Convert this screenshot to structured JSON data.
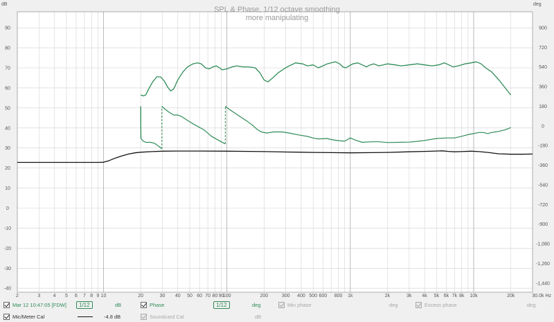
{
  "chart_data": {
    "type": "line",
    "title": "SPL & Phase, 1/12 octave smoothing",
    "subtitle": "more manipulating",
    "y_left_unit": "dB",
    "y_right_unit": "deg",
    "x_unit": "Hz",
    "x_scale": "log",
    "xlim": [
      2,
      30000
    ],
    "ylim_left": [
      -42,
      98
    ],
    "ylim_right": [
      -1524,
      1046
    ],
    "grid": true,
    "x_ticks": [
      {
        "v": 2,
        "label": "2"
      },
      {
        "v": 3,
        "label": "3"
      },
      {
        "v": 4,
        "label": "4"
      },
      {
        "v": 5,
        "label": "5"
      },
      {
        "v": 6,
        "label": "6"
      },
      {
        "v": 7,
        "label": "7"
      },
      {
        "v": 8,
        "label": "8"
      },
      {
        "v": 9,
        "label": "9"
      },
      {
        "v": 10,
        "label": "10"
      },
      {
        "v": 20,
        "label": "20"
      },
      {
        "v": 30,
        "label": "30"
      },
      {
        "v": 40,
        "label": "40"
      },
      {
        "v": 50,
        "label": "50"
      },
      {
        "v": 60,
        "label": "60"
      },
      {
        "v": 70,
        "label": "70"
      },
      {
        "v": 80,
        "label": "80"
      },
      {
        "v": 90,
        "label": "90"
      },
      {
        "v": 100,
        "label": "100"
      },
      {
        "v": 200,
        "label": "200"
      },
      {
        "v": 300,
        "label": "300"
      },
      {
        "v": 400,
        "label": "400"
      },
      {
        "v": 500,
        "label": "500"
      },
      {
        "v": 600,
        "label": "600"
      },
      {
        "v": 800,
        "label": "800"
      },
      {
        "v": 1000,
        "label": "1k"
      },
      {
        "v": 2000,
        "label": "2k"
      },
      {
        "v": 3000,
        "label": "3k"
      },
      {
        "v": 4000,
        "label": "4k"
      },
      {
        "v": 5000,
        "label": "5k"
      },
      {
        "v": 6000,
        "label": "6k"
      },
      {
        "v": 7000,
        "label": "7k"
      },
      {
        "v": 8000,
        "label": "8k"
      },
      {
        "v": 10000,
        "label": "10k"
      },
      {
        "v": 20000,
        "label": "20k"
      },
      {
        "v": 30000,
        "label": "30.0k Hz"
      }
    ],
    "x_minor": [
      700,
      900,
      9000
    ],
    "y_left_ticks": [
      {
        "v": 90,
        "label": "90"
      },
      {
        "v": 80,
        "label": "80"
      },
      {
        "v": 70,
        "label": "70"
      },
      {
        "v": 60,
        "label": "60"
      },
      {
        "v": 50,
        "label": "50"
      },
      {
        "v": 40,
        "label": "40"
      },
      {
        "v": 30,
        "label": "30"
      },
      {
        "v": 20,
        "label": "20"
      },
      {
        "v": 10,
        "label": "10"
      },
      {
        "v": 0,
        "label": "0"
      },
      {
        "v": -10,
        "label": "-10"
      },
      {
        "v": -20,
        "label": "-20"
      },
      {
        "v": -30,
        "label": "-30"
      },
      {
        "v": -40,
        "label": "-40"
      }
    ],
    "y_right_ticks": [
      {
        "v": 900,
        "label": "900"
      },
      {
        "v": 720,
        "label": "720"
      },
      {
        "v": 540,
        "label": "540"
      },
      {
        "v": 360,
        "label": "360"
      },
      {
        "v": 180,
        "label": "180"
      },
      {
        "v": 0,
        "label": "0"
      },
      {
        "v": -180,
        "label": "-180"
      },
      {
        "v": -360,
        "label": "-360"
      },
      {
        "v": -540,
        "label": "-540"
      },
      {
        "v": -720,
        "label": "-720"
      },
      {
        "v": -900,
        "label": "-900"
      },
      {
        "v": -1080,
        "label": "-1,080"
      },
      {
        "v": -1260,
        "label": "-1,260"
      },
      {
        "v": -1440,
        "label": "-1,440"
      }
    ],
    "series": [
      {
        "name": "Mar 12 10:47:05 [FDW]",
        "axis": "left",
        "color": "#2e8b57",
        "points": [
          [
            20,
            56.5
          ],
          [
            21,
            56
          ],
          [
            22,
            56.5
          ],
          [
            23,
            59
          ],
          [
            25,
            63
          ],
          [
            27,
            65.5
          ],
          [
            29,
            65.5
          ],
          [
            31,
            63.5
          ],
          [
            33,
            60.5
          ],
          [
            35,
            58.5
          ],
          [
            37,
            59.5
          ],
          [
            40,
            64
          ],
          [
            44,
            68
          ],
          [
            48,
            70.5
          ],
          [
            53,
            72
          ],
          [
            58,
            72.5
          ],
          [
            62,
            72
          ],
          [
            67,
            70
          ],
          [
            72,
            69.5
          ],
          [
            77,
            70.5
          ],
          [
            82,
            71
          ],
          [
            87,
            70
          ],
          [
            92,
            69
          ],
          [
            100,
            69.5
          ],
          [
            110,
            70.5
          ],
          [
            120,
            71
          ],
          [
            135,
            70.5
          ],
          [
            150,
            70.5
          ],
          [
            170,
            70
          ],
          [
            185,
            67.5
          ],
          [
            200,
            64
          ],
          [
            215,
            63
          ],
          [
            235,
            65
          ],
          [
            260,
            67.5
          ],
          [
            290,
            69.5
          ],
          [
            320,
            71
          ],
          [
            360,
            72.5
          ],
          [
            410,
            72
          ],
          [
            450,
            71
          ],
          [
            500,
            71.5
          ],
          [
            550,
            70
          ],
          [
            600,
            71
          ],
          [
            650,
            72
          ],
          [
            700,
            72.5
          ],
          [
            760,
            73
          ],
          [
            820,
            72
          ],
          [
            870,
            70.5
          ],
          [
            920,
            70
          ],
          [
            980,
            71
          ],
          [
            1050,
            72
          ],
          [
            1150,
            72.5
          ],
          [
            1250,
            71.5
          ],
          [
            1350,
            70.5
          ],
          [
            1450,
            71.5
          ],
          [
            1550,
            72
          ],
          [
            1700,
            71
          ],
          [
            1850,
            71.5
          ],
          [
            2000,
            72
          ],
          [
            2300,
            71.5
          ],
          [
            2600,
            71
          ],
          [
            3000,
            71.5
          ],
          [
            3500,
            72
          ],
          [
            4000,
            71.5
          ],
          [
            4600,
            71
          ],
          [
            5200,
            71.5
          ],
          [
            5800,
            72.5
          ],
          [
            6300,
            71.5
          ],
          [
            6800,
            70.5
          ],
          [
            7500,
            71
          ],
          [
            8500,
            72
          ],
          [
            9500,
            72.5
          ],
          [
            10500,
            73
          ],
          [
            11500,
            72
          ],
          [
            12500,
            70
          ],
          [
            14000,
            68
          ],
          [
            16000,
            64
          ],
          [
            18000,
            60
          ],
          [
            20000,
            56.5
          ]
        ]
      },
      {
        "name": "Phase",
        "axis": "right",
        "color": "#2e8b57",
        "segments": [
          [
            [
              20,
              180
            ],
            [
              20.1,
              -115
            ],
            [
              21,
              -140
            ],
            [
              22,
              -150
            ],
            [
              24,
              -150
            ],
            [
              26,
              -160
            ],
            [
              27.5,
              -180
            ],
            [
              29.7,
              -210
            ]
          ],
          [
            [
              29.7,
              180
            ],
            [
              31,
              160
            ],
            [
              34,
              125
            ],
            [
              37,
              100
            ],
            [
              40,
              100
            ],
            [
              43,
              85
            ],
            [
              48,
              50
            ],
            [
              55,
              10
            ],
            [
              65,
              -35
            ],
            [
              75,
              -95
            ],
            [
              85,
              -130
            ],
            [
              97,
              -165
            ]
          ],
          [
            [
              97,
              180
            ],
            [
              105,
              150
            ],
            [
              115,
              120
            ],
            [
              130,
              80
            ],
            [
              145,
              45
            ],
            [
              160,
              10
            ],
            [
              175,
              -30
            ],
            [
              190,
              -55
            ],
            [
              210,
              -65
            ],
            [
              240,
              -55
            ],
            [
              280,
              -55
            ],
            [
              320,
              -65
            ],
            [
              380,
              -82
            ],
            [
              450,
              -96
            ],
            [
              500,
              -111
            ],
            [
              550,
              -119
            ],
            [
              650,
              -115
            ],
            [
              700,
              -125
            ],
            [
              800,
              -135
            ],
            [
              900,
              -140
            ],
            [
              950,
              -125
            ],
            [
              1000,
              -110
            ],
            [
              1100,
              -130
            ],
            [
              1250,
              -150
            ],
            [
              1500,
              -145
            ],
            [
              1700,
              -145
            ],
            [
              2000,
              -152
            ],
            [
              2500,
              -150
            ],
            [
              3000,
              -148
            ],
            [
              3500,
              -141
            ],
            [
              4000,
              -133
            ],
            [
              5000,
              -115
            ],
            [
              6000,
              -110
            ],
            [
              7000,
              -110
            ],
            [
              8000,
              -95
            ],
            [
              9000,
              -80
            ],
            [
              10000,
              -70
            ],
            [
              11000,
              -60
            ],
            [
              12000,
              -60
            ],
            [
              13000,
              -70
            ],
            [
              14000,
              -60
            ],
            [
              15000,
              -55
            ],
            [
              16000,
              -50
            ],
            [
              18000,
              -35
            ],
            [
              20000,
              -15
            ]
          ]
        ],
        "jumps": [
          20,
          29.7,
          97
        ]
      },
      {
        "name": "Mic/Meter Cal",
        "axis": "left",
        "color": "#111111",
        "points": [
          [
            2,
            22.8
          ],
          [
            5,
            22.8
          ],
          [
            9,
            22.8
          ],
          [
            10,
            22.9
          ],
          [
            11,
            23.6
          ],
          [
            12.5,
            25
          ],
          [
            14,
            26
          ],
          [
            16,
            27
          ],
          [
            18,
            27.6
          ],
          [
            20,
            27.9
          ],
          [
            25,
            28.2
          ],
          [
            30,
            28.4
          ],
          [
            40,
            28.5
          ],
          [
            60,
            28.5
          ],
          [
            100,
            28.4
          ],
          [
            150,
            28.3
          ],
          [
            200,
            28.2
          ],
          [
            300,
            28
          ],
          [
            400,
            27.9
          ],
          [
            500,
            27.8
          ],
          [
            700,
            27.7
          ],
          [
            1000,
            27.6
          ],
          [
            1500,
            27.7
          ],
          [
            2000,
            27.8
          ],
          [
            3000,
            28.1
          ],
          [
            4000,
            28.3
          ],
          [
            5000,
            28.5
          ],
          [
            5600,
            28.6
          ],
          [
            6200,
            28.3
          ],
          [
            7000,
            28.1
          ],
          [
            8000,
            28.2
          ],
          [
            9500,
            28.4
          ],
          [
            11000,
            28.2
          ],
          [
            13000,
            27.8
          ],
          [
            16000,
            27.1
          ],
          [
            20000,
            26.9
          ],
          [
            25000,
            26.9
          ],
          [
            30000,
            27
          ]
        ]
      }
    ]
  },
  "legend": {
    "row1": {
      "meas_label": "Mar 12 10:47:05 [FDW]",
      "meas_smoothing": "1/12",
      "meas_unit": "dB",
      "phase_label": "Phase",
      "phase_smoothing": "1/12",
      "phase_unit": "deg",
      "minphase_label": "Min phase",
      "minphase_unit": "deg",
      "excess_label": "Excess phase",
      "excess_unit": "deg"
    },
    "row2": {
      "cal_label": "Mic/Meter Cal",
      "cal_value": "-4.8 dB",
      "soundcard_label": "Soundcard Cal",
      "soundcard_unit": "dB"
    }
  }
}
